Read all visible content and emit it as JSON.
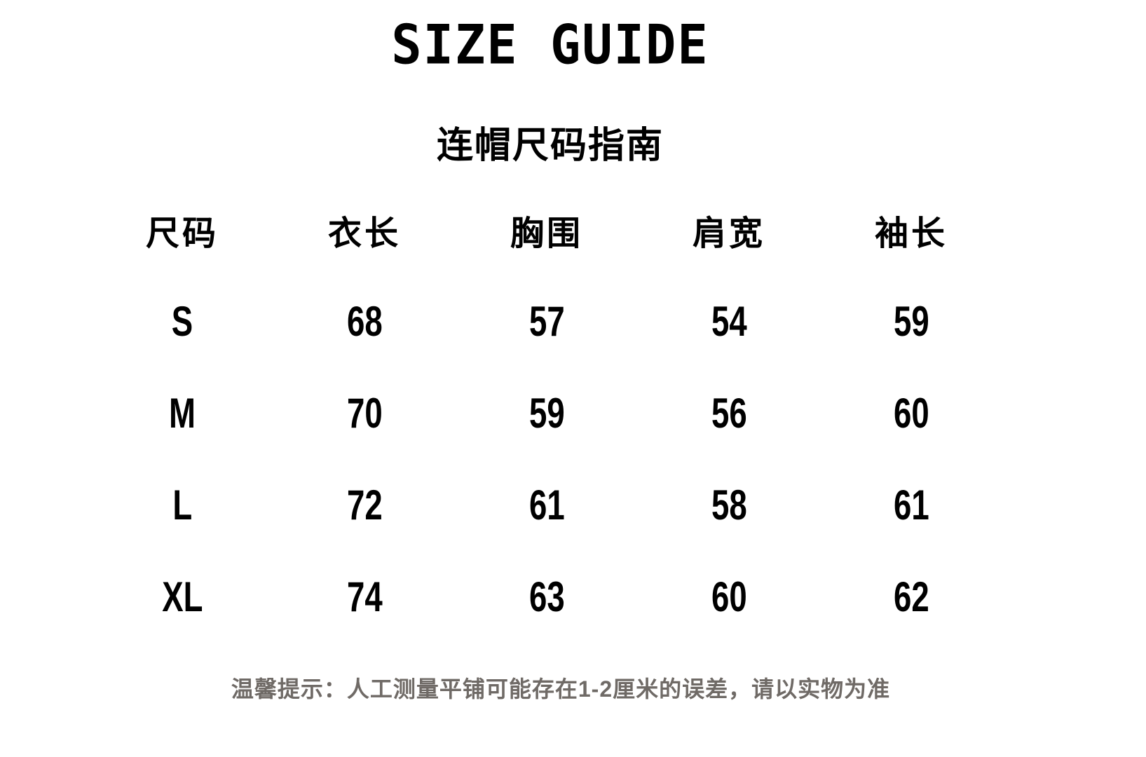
{
  "header": {
    "title": "SIZE GUIDE",
    "subtitle": "连帽尺码指南"
  },
  "table": {
    "columns": [
      "尺码",
      "衣长",
      "胸围",
      "肩宽",
      "袖长"
    ],
    "rows": [
      {
        "size": "S",
        "values": [
          "68",
          "57",
          "54",
          "59"
        ]
      },
      {
        "size": "M",
        "values": [
          "70",
          "59",
          "56",
          "60"
        ]
      },
      {
        "size": "L",
        "values": [
          "72",
          "61",
          "58",
          "61"
        ]
      },
      {
        "size": "XL",
        "values": [
          "74",
          "63",
          "60",
          "62"
        ]
      }
    ]
  },
  "footer": {
    "note": "温馨提示：人工测量平铺可能存在1-2厘米的误差，请以实物为准"
  },
  "colors": {
    "background": "#ffffff",
    "text": "#000000",
    "note_text": "#6f6a66"
  }
}
